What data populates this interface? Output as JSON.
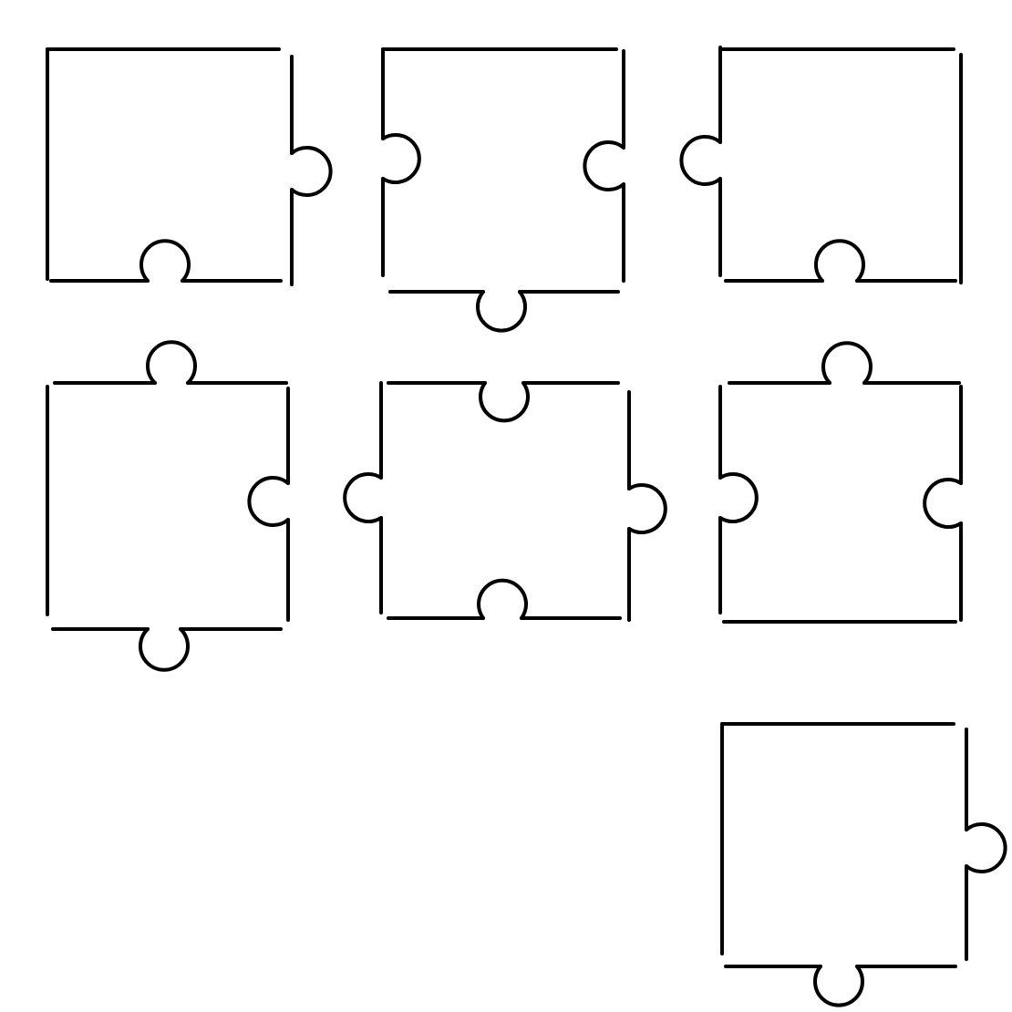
{
  "colors": {
    "background": "#ffffff",
    "stroke": "#000000"
  },
  "pieces": [
    {
      "id": "piece-1",
      "row": 1,
      "col": 1,
      "top": "flat",
      "right": "tab",
      "bottom": "blank",
      "left": "flat"
    },
    {
      "id": "piece-2",
      "row": 1,
      "col": 2,
      "top": "flat",
      "right": "blank",
      "bottom": "tab",
      "left": "blank"
    },
    {
      "id": "piece-3",
      "row": 1,
      "col": 3,
      "top": "flat",
      "right": "flat",
      "bottom": "blank",
      "left": "tab"
    },
    {
      "id": "piece-4",
      "row": 2,
      "col": 1,
      "top": "tab",
      "right": "blank",
      "bottom": "tab",
      "left": "flat"
    },
    {
      "id": "piece-5",
      "row": 2,
      "col": 2,
      "top": "blank",
      "right": "tab",
      "bottom": "blank",
      "left": "tab"
    },
    {
      "id": "piece-6",
      "row": 2,
      "col": 3,
      "top": "tab",
      "right": "blank",
      "bottom": "flat",
      "left": "blank"
    },
    {
      "id": "piece-7",
      "row": 3,
      "col": 3,
      "top": "flat",
      "right": "tab",
      "bottom": "tab",
      "left": "flat"
    }
  ]
}
